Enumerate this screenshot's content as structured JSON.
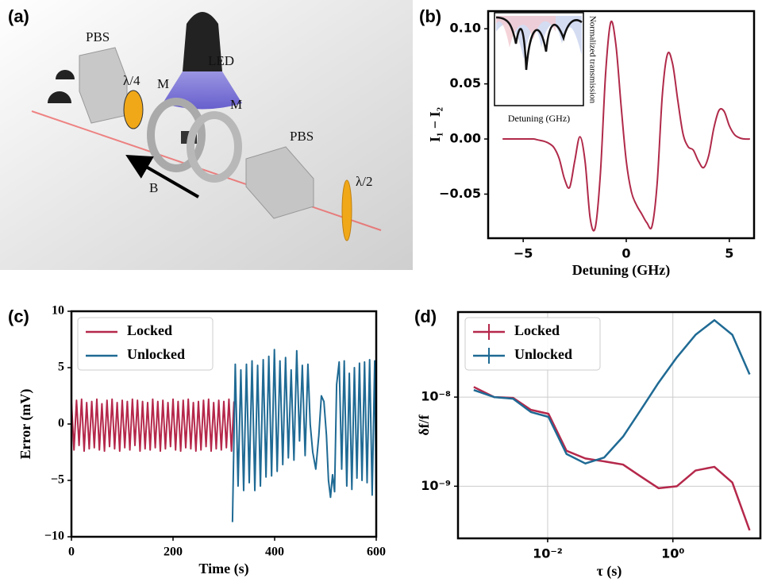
{
  "panel_labels": [
    "(a)",
    "(b)",
    "(c)",
    "(d)"
  ],
  "diagram": {
    "labels": [
      "PBS",
      "λ/4",
      "LED",
      "M",
      "M",
      "PBS",
      "λ/2",
      "B"
    ]
  },
  "chart_data": [
    {
      "type": "line",
      "xlabel": "Detuning (GHz)",
      "ylabel": "I₁ − I₂",
      "color": "#b02a4a",
      "x": [
        -6,
        -5.75,
        -5.5,
        -5.25,
        -5,
        -4.75,
        -4.5,
        -4.25,
        -4,
        -3.75,
        -3.5,
        -3.25,
        -3,
        -2.75,
        -2.5,
        -2.25,
        -2,
        -1.75,
        -1.5,
        -1.25,
        -1,
        -0.75,
        -0.5,
        -0.25,
        0,
        0.25,
        0.5,
        0.75,
        1,
        1.25,
        1.5,
        1.75,
        2,
        2.25,
        2.5,
        2.75,
        3,
        3.25,
        3.5,
        3.75,
        4,
        4.25,
        4.5,
        4.75,
        5,
        5.25,
        5.5,
        5.75,
        6
      ],
      "values": [
        0,
        0,
        0,
        0,
        0,
        0,
        0,
        -0.001,
        -0.002,
        -0.004,
        -0.008,
        -0.018,
        -0.036,
        -0.044,
        -0.02,
        0.002,
        -0.02,
        -0.072,
        -0.08,
        -0.03,
        0.06,
        0.106,
        0.085,
        0.03,
        -0.02,
        -0.048,
        -0.06,
        -0.068,
        -0.076,
        -0.079,
        -0.04,
        0.04,
        0.077,
        0.068,
        0.035,
        0.005,
        -0.007,
        -0.01,
        -0.02,
        -0.026,
        -0.015,
        0.01,
        0.026,
        0.025,
        0.012,
        0.004,
        0.001,
        0,
        0
      ],
      "xlim": [
        -6.7,
        6.2
      ],
      "ylim": [
        -0.09,
        0.116
      ],
      "xticks": [
        {
          "value": -5,
          "label": "−5"
        },
        0,
        5
      ],
      "yticks": [
        {
          "value": -0.05,
          "label": "−0.05"
        },
        {
          "value": 0,
          "label": "0.00"
        },
        {
          "value": 0.05,
          "label": "0.05"
        },
        {
          "value": 0.1,
          "label": "0.10"
        }
      ],
      "inset": {
        "xlabel": "Detuning (GHz)",
        "ylabel": "Normalized transmission"
      }
    },
    {
      "type": "line",
      "xlabel": "Time (s)",
      "ylabel": "Error (mV)",
      "legend": "upper left",
      "xlim": [
        0,
        600
      ],
      "ylim": [
        -10,
        10
      ],
      "xticks": [
        0,
        200,
        400,
        600
      ],
      "yticks": [
        {
          "value": -10,
          "label": "−10"
        },
        {
          "value": -5,
          "label": "−5"
        },
        0,
        5,
        10
      ],
      "series": [
        {
          "name": "Locked",
          "color": "#b5284b",
          "x": [
            0,
            5,
            10,
            15,
            20,
            25,
            30,
            35,
            40,
            45,
            50,
            55,
            60,
            65,
            70,
            75,
            80,
            85,
            90,
            95,
            100,
            105,
            110,
            115,
            120,
            125,
            130,
            135,
            140,
            145,
            150,
            155,
            160,
            165,
            170,
            175,
            180,
            185,
            190,
            195,
            200,
            205,
            210,
            215,
            220,
            225,
            230,
            235,
            240,
            245,
            250,
            255,
            260,
            265,
            270,
            275,
            280,
            285,
            290,
            295,
            300,
            305,
            310,
            315,
            320
          ],
          "values": [
            2.0,
            -2.3,
            2.1,
            -1.9,
            2.2,
            -2.4,
            1.9,
            -2.2,
            2.0,
            -2.1,
            2.2,
            -2.3,
            1.8,
            -2.4,
            2.1,
            -2.0,
            2.2,
            -2.2,
            1.9,
            -2.4,
            2.1,
            -2.1,
            2.0,
            -2.3,
            2.2,
            -1.9,
            2.1,
            -2.4,
            2.0,
            -2.2,
            1.9,
            -2.3,
            2.2,
            -2.1,
            2.0,
            -2.4,
            2.1,
            -2.2,
            1.9,
            -2.0,
            2.2,
            -2.3,
            2.0,
            -2.4,
            2.1,
            -2.1,
            2.2,
            -2.2,
            1.9,
            -2.4,
            2.0,
            -2.3,
            2.1,
            -2.0,
            2.2,
            -2.4,
            1.9,
            -2.2,
            2.1,
            -2.3,
            2.0,
            -2.1,
            2.2,
            -2.4,
            2.0
          ]
        },
        {
          "name": "Unlocked",
          "color": "#1f6a94",
          "x": [
            317,
            322.5,
            328,
            333.5,
            339,
            344.5,
            350,
            355.5,
            361,
            366.5,
            372,
            377.5,
            383,
            388.5,
            394,
            399.5,
            405,
            410.5,
            416,
            421.5,
            427,
            432.5,
            438,
            443.5,
            449,
            454.5,
            460,
            465.5,
            470,
            475,
            481,
            487,
            492,
            497,
            502,
            506,
            510,
            514,
            518,
            522,
            527,
            532,
            537,
            542,
            547,
            552,
            557,
            562,
            567,
            572,
            577,
            582,
            587,
            592,
            597,
            600
          ],
          "values": [
            -8.7,
            5.3,
            -5.5,
            4.8,
            -5.9,
            5.3,
            -5.2,
            5.6,
            -5.9,
            5.2,
            -5.5,
            5.7,
            -4.7,
            6.0,
            -4.6,
            6.6,
            -4.2,
            5.6,
            -3.6,
            5.9,
            -3.0,
            4.8,
            -3.2,
            6.5,
            -1.5,
            5.2,
            -2.8,
            5.3,
            0,
            -2.5,
            -4.0,
            -1.0,
            2.5,
            2.0,
            -1.0,
            -5.0,
            -6.5,
            -4.5,
            -6.0,
            3.5,
            5.5,
            -4.0,
            5.6,
            -5.5,
            4.5,
            -5.8,
            5.0,
            -4.8,
            5.4,
            -5.0,
            5.5,
            -5.2,
            5.7,
            -6.3,
            5.6,
            -6.5
          ]
        }
      ]
    },
    {
      "type": "line",
      "xlabel": "τ (s)",
      "ylabel": "δf/f",
      "legend": "upper left",
      "grid": true,
      "xscale": "log",
      "yscale": "log",
      "xlim": [
        0.00037,
        25
      ],
      "ylim": [
        2.6e-10,
        9e-08
      ],
      "xticks": [
        {
          "value": 0.01,
          "label": "10⁻²"
        },
        {
          "value": 1,
          "label": "10⁰"
        }
      ],
      "yticks": [
        {
          "value": 1e-09,
          "label": "10⁻⁹"
        },
        {
          "value": 1e-08,
          "label": "10⁻⁸"
        }
      ],
      "series": [
        {
          "name": "Locked",
          "color": "#b5284b",
          "x": [
            0.00066,
            0.0014,
            0.0028,
            0.0054,
            0.0103,
            0.02,
            0.04,
            0.08,
            0.16,
            0.3,
            0.59,
            1.16,
            2.3,
            4.6,
            8.9,
            16.8
          ],
          "values": [
            1.3e-08,
            1e-08,
            9.8e-09,
            7.2e-09,
            6.5e-09,
            2.5e-09,
            2.05e-09,
            1.9e-09,
            1.75e-09,
            1.3e-09,
            9.5e-10,
            1e-09,
            1.5e-09,
            1.65e-09,
            1.1e-09,
            3.2e-10
          ]
        },
        {
          "name": "Unlocked",
          "color": "#1f6a94",
          "x": [
            0.00066,
            0.0014,
            0.0028,
            0.0054,
            0.0103,
            0.02,
            0.04,
            0.08,
            0.16,
            0.3,
            0.59,
            1.16,
            2.3,
            4.6,
            8.9,
            16.8
          ],
          "values": [
            1.2e-08,
            1e-08,
            9.6e-09,
            6.8e-09,
            6e-09,
            2.3e-09,
            1.8e-09,
            2.1e-09,
            3.6e-09,
            7e-09,
            1.45e-08,
            2.8e-08,
            5e-08,
            7.3e-08,
            5e-08,
            1.8e-08
          ]
        }
      ]
    }
  ]
}
